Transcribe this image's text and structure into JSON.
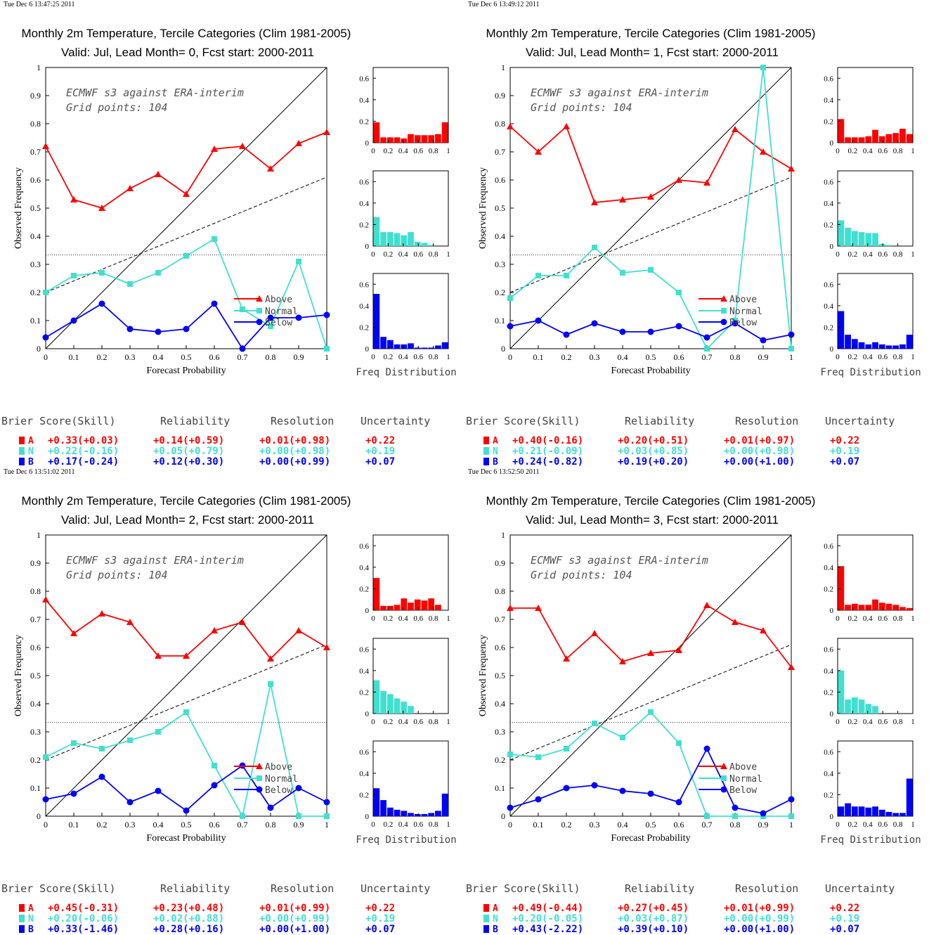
{
  "colors": {
    "above": "#ff0000",
    "normal": "#40e0d0",
    "below": "#0000ff",
    "axis": "#000000"
  },
  "common": {
    "x_axis_label": "Forecast Probability",
    "y_axis_label": "Observed Frequency",
    "freq_label": "Freq Distribution",
    "annotation_line1": "ECMWF s3 against ERA-interim",
    "annotation_line2": "Grid points:  104",
    "legend": [
      "Above",
      "Normal",
      "Below"
    ],
    "score_headers": [
      "Brier Score(Skill)",
      "Reliability",
      "Resolution",
      "Uncertainty"
    ],
    "category_letters": [
      "A",
      "N",
      "B"
    ],
    "rel_x_ticks": [
      "0",
      "0.1",
      "0.2",
      "0.3",
      "0.4",
      "0.5",
      "0.6",
      "0.7",
      "0.8",
      "0.9",
      "1"
    ],
    "rel_y_ticks": [
      "0",
      "0.1",
      "0.2",
      "0.3",
      "0.4",
      "0.5",
      "0.6",
      "0.7",
      "0.8",
      "0.9",
      "1"
    ],
    "hist_x_ticks": [
      "0",
      "0.2",
      "0.4",
      "0.6",
      "0.8",
      "1"
    ],
    "hist_y_ticks": [
      "0",
      "0.2",
      "0.4",
      "0.6"
    ]
  },
  "chart_data": [
    {
      "type": "line",
      "timestamp": "Tue Dec  6 13:47:25 2011",
      "title": "Monthly 2m Temperature, Tercile Categories (Clim 1981-2005)",
      "subtitle": "Valid: Jul, Lead Month= 0, Fcst start: 2000-2011",
      "x": [
        0,
        0.1,
        0.2,
        0.3,
        0.4,
        0.5,
        0.6,
        0.7,
        0.8,
        0.9,
        1
      ],
      "xlim": [
        0,
        1
      ],
      "ylim": [
        0,
        1
      ],
      "series": [
        {
          "name": "Above",
          "values": [
            0.72,
            0.53,
            0.5,
            0.57,
            0.62,
            0.55,
            0.71,
            0.72,
            0.64,
            0.73,
            0.77
          ]
        },
        {
          "name": "Normal",
          "values": [
            0.2,
            0.26,
            0.27,
            0.23,
            0.27,
            0.33,
            0.39,
            0.14,
            0.08,
            0.31,
            0.0
          ]
        },
        {
          "name": "Below",
          "values": [
            0.04,
            0.1,
            0.16,
            0.07,
            0.06,
            0.07,
            0.16,
            0.0,
            0.11,
            0.11,
            0.12
          ]
        }
      ],
      "hist": {
        "above": [
          0.19,
          0.05,
          0.05,
          0.05,
          0.04,
          0.08,
          0.07,
          0.07,
          0.07,
          0.08,
          0.19
        ],
        "normal": [
          0.27,
          0.13,
          0.13,
          0.12,
          0.1,
          0.13,
          0.04,
          0.03,
          0.01,
          0,
          0
        ],
        "below": [
          0.51,
          0.11,
          0.08,
          0.04,
          0.04,
          0.05,
          0.01,
          0.01,
          0.01,
          0.03,
          0.06
        ]
      },
      "scores": [
        [
          "+0.33(+0.03)",
          "+0.14(+0.59)",
          "+0.01(+0.98)",
          "+0.22"
        ],
        [
          "+0.22(-0.16)",
          "+0.05(+0.79)",
          "+0.00(+0.98)",
          "+0.19"
        ],
        [
          "+0.17(-0.24)",
          "+0.12(+0.30)",
          "+0.00(+0.99)",
          "+0.07"
        ]
      ]
    },
    {
      "type": "line",
      "timestamp": "Tue Dec  6 13:49:12 2011",
      "title": "Monthly 2m Temperature, Tercile Categories (Clim 1981-2005)",
      "subtitle": "Valid: Jul, Lead Month= 1, Fcst start: 2000-2011",
      "x": [
        0,
        0.1,
        0.2,
        0.3,
        0.4,
        0.5,
        0.6,
        0.7,
        0.8,
        0.9,
        1
      ],
      "xlim": [
        0,
        1
      ],
      "ylim": [
        0,
        1
      ],
      "series": [
        {
          "name": "Above",
          "values": [
            0.79,
            0.7,
            0.79,
            0.52,
            0.53,
            0.54,
            0.6,
            0.59,
            0.78,
            0.7,
            0.64
          ]
        },
        {
          "name": "Normal",
          "values": [
            0.18,
            0.26,
            0.26,
            0.36,
            0.27,
            0.28,
            0.2,
            0.0,
            0.1,
            1.0,
            0.0
          ]
        },
        {
          "name": "Below",
          "values": [
            0.08,
            0.1,
            0.05,
            0.09,
            0.06,
            0.06,
            0.08,
            0.04,
            0.09,
            0.03,
            0.05
          ]
        }
      ],
      "hist": {
        "above": [
          0.22,
          0.05,
          0.05,
          0.05,
          0.06,
          0.12,
          0.06,
          0.08,
          0.09,
          0.13,
          0.08
        ],
        "normal": [
          0.24,
          0.17,
          0.14,
          0.13,
          0.12,
          0.12,
          0.02,
          0.01,
          0,
          0,
          0
        ],
        "below": [
          0.35,
          0.13,
          0.09,
          0.06,
          0.04,
          0.06,
          0.04,
          0.03,
          0.03,
          0.04,
          0.13
        ]
      },
      "scores": [
        [
          "+0.40(-0.16)",
          "+0.20(+0.51)",
          "+0.01(+0.97)",
          "+0.22"
        ],
        [
          "+0.21(-0.09)",
          "+0.03(+0.85)",
          "+0.00(+0.98)",
          "+0.19"
        ],
        [
          "+0.24(-0.82)",
          "+0.19(+0.20)",
          "+0.00(+1.00)",
          "+0.07"
        ]
      ]
    },
    {
      "type": "line",
      "timestamp": "Tue Dec  6 13:51:02 2011",
      "title": "Monthly 2m Temperature, Tercile Categories (Clim 1981-2005)",
      "subtitle": "Valid: Jul, Lead Month= 2, Fcst start: 2000-2011",
      "x": [
        0,
        0.1,
        0.2,
        0.3,
        0.4,
        0.5,
        0.6,
        0.7,
        0.8,
        0.9,
        1
      ],
      "xlim": [
        0,
        1
      ],
      "ylim": [
        0,
        1
      ],
      "series": [
        {
          "name": "Above",
          "values": [
            0.77,
            0.65,
            0.72,
            0.69,
            0.57,
            0.57,
            0.66,
            0.69,
            0.56,
            0.66,
            0.6
          ]
        },
        {
          "name": "Normal",
          "values": [
            0.21,
            0.26,
            0.24,
            0.27,
            0.3,
            0.37,
            0.18,
            0.0,
            0.47,
            0.0,
            0.0
          ]
        },
        {
          "name": "Below",
          "values": [
            0.06,
            0.08,
            0.14,
            0.05,
            0.09,
            0.02,
            0.11,
            0.18,
            0.03,
            0.1,
            0.05
          ]
        }
      ],
      "hist": {
        "above": [
          0.3,
          0.04,
          0.04,
          0.05,
          0.11,
          0.07,
          0.1,
          0.09,
          0.11,
          0.05,
          0
        ],
        "normal": [
          0.31,
          0.21,
          0.18,
          0.14,
          0.11,
          0.07,
          0,
          0,
          0,
          0,
          0
        ],
        "below": [
          0.26,
          0.15,
          0.08,
          0.06,
          0.05,
          0.03,
          0.02,
          0.02,
          0.03,
          0.05,
          0.21
        ]
      },
      "scores": [
        [
          "+0.45(-0.31)",
          "+0.23(+0.48)",
          "+0.01(+0.99)",
          "+0.22"
        ],
        [
          "+0.20(-0.06)",
          "+0.02(+0.88)",
          "+0.00(+0.99)",
          "+0.19"
        ],
        [
          "+0.33(-1.46)",
          "+0.28(+0.16)",
          "+0.00(+1.00)",
          "+0.07"
        ]
      ]
    },
    {
      "type": "line",
      "timestamp": "Tue Dec  6 13:52:50 2011",
      "title": "Monthly 2m Temperature, Tercile Categories (Clim 1981-2005)",
      "subtitle": "Valid: Jul, Lead Month= 3, Fcst start: 2000-2011",
      "x": [
        0,
        0.1,
        0.2,
        0.3,
        0.4,
        0.5,
        0.6,
        0.7,
        0.8,
        0.9,
        1
      ],
      "xlim": [
        0,
        1
      ],
      "ylim": [
        0,
        1
      ],
      "series": [
        {
          "name": "Above",
          "values": [
            0.74,
            0.74,
            0.56,
            0.65,
            0.55,
            0.58,
            0.59,
            0.75,
            0.69,
            0.66,
            0.53
          ]
        },
        {
          "name": "Normal",
          "values": [
            0.22,
            0.21,
            0.24,
            0.33,
            0.28,
            0.37,
            0.26,
            0.0,
            0.0,
            0.0,
            0.0
          ]
        },
        {
          "name": "Below",
          "values": [
            0.03,
            0.06,
            0.1,
            0.11,
            0.09,
            0.08,
            0.05,
            0.24,
            0.03,
            0.01,
            0.06
          ]
        }
      ],
      "hist": {
        "above": [
          0.41,
          0.05,
          0.06,
          0.05,
          0.05,
          0.1,
          0.07,
          0.06,
          0.05,
          0.03,
          0.02
        ],
        "normal": [
          0.4,
          0.13,
          0.15,
          0.13,
          0.09,
          0.07,
          0,
          0,
          0,
          0,
          0
        ],
        "below": [
          0.09,
          0.12,
          0.09,
          0.09,
          0.08,
          0.09,
          0.06,
          0.04,
          0.03,
          0.03,
          0.35
        ]
      },
      "scores": [
        [
          "+0.49(-0.44)",
          "+0.27(+0.45)",
          "+0.01(+0.99)",
          "+0.22"
        ],
        [
          "+0.20(-0.05)",
          "+0.03(+0.87)",
          "+0.00(+0.99)",
          "+0.19"
        ],
        [
          "+0.43(-2.22)",
          "+0.39(+0.10)",
          "+0.00(+1.00)",
          "+0.07"
        ]
      ]
    }
  ]
}
